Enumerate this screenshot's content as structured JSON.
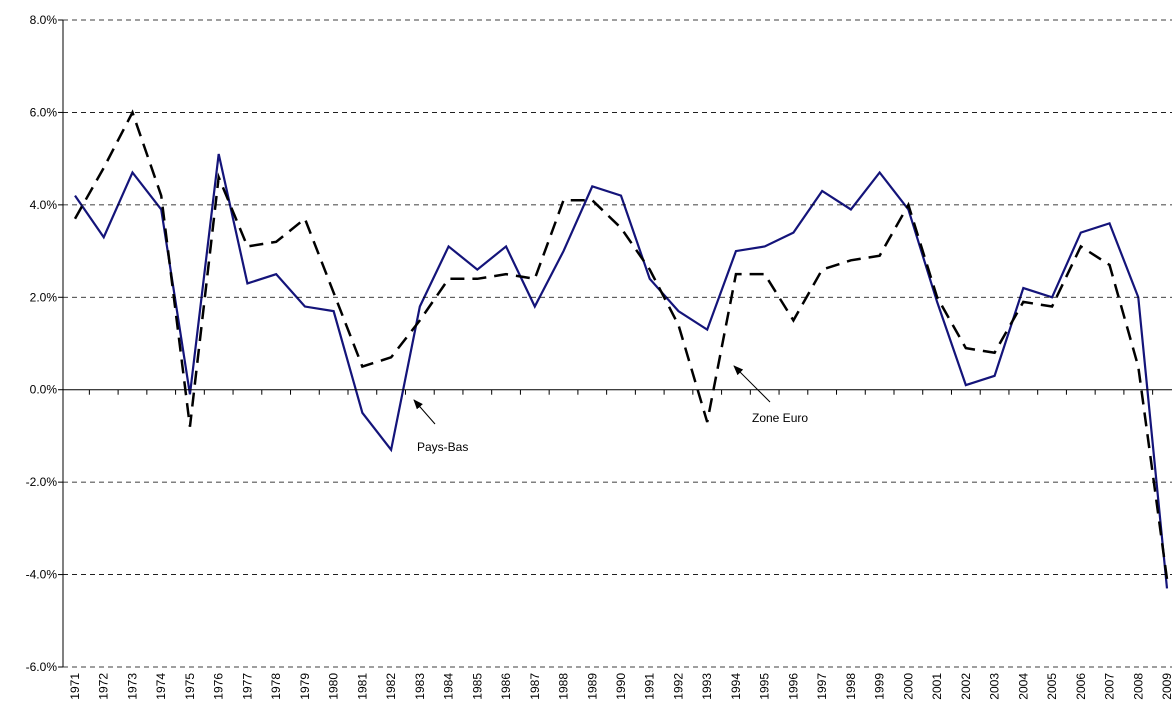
{
  "chart_data": {
    "type": "line",
    "categories": [
      "1971",
      "1972",
      "1973",
      "1974",
      "1975",
      "1976",
      "1977",
      "1978",
      "1979",
      "1980",
      "1981",
      "1982",
      "1983",
      "1984",
      "1985",
      "1986",
      "1987",
      "1988",
      "1989",
      "1990",
      "1991",
      "1992",
      "1993",
      "1994",
      "1995",
      "1996",
      "1997",
      "1998",
      "1999",
      "2000",
      "2001",
      "2002",
      "2003",
      "2004",
      "2005",
      "2006",
      "2007",
      "2008",
      "2009"
    ],
    "series": [
      {
        "name": "Pays-Bas",
        "color": "#14147a",
        "dash": false,
        "values": [
          4.2,
          3.3,
          4.7,
          3.9,
          -0.1,
          5.1,
          2.3,
          2.5,
          1.8,
          1.7,
          -0.5,
          -1.3,
          1.8,
          3.1,
          2.6,
          3.1,
          1.8,
          3.0,
          4.4,
          4.2,
          2.4,
          1.7,
          1.3,
          3.0,
          3.1,
          3.4,
          4.3,
          3.9,
          4.7,
          3.9,
          1.9,
          0.1,
          0.3,
          2.2,
          2.0,
          3.4,
          3.6,
          2.0,
          -4.3
        ]
      },
      {
        "name": "Zone Euro",
        "color": "#000000",
        "dash": true,
        "values": [
          3.7,
          4.8,
          6.0,
          4.2,
          -0.8,
          4.6,
          3.1,
          3.2,
          3.7,
          2.1,
          0.5,
          0.7,
          1.5,
          2.4,
          2.4,
          2.5,
          2.4,
          4.1,
          4.1,
          3.5,
          2.6,
          1.4,
          -0.7,
          2.5,
          2.5,
          1.5,
          2.6,
          2.8,
          2.9,
          4.0,
          2.0,
          0.9,
          0.8,
          1.9,
          1.8,
          3.1,
          2.7,
          0.5,
          -4.1
        ]
      }
    ],
    "ylim": [
      -6,
      8
    ],
    "yticks": [
      {
        "value": -6,
        "label": "-6.0%"
      },
      {
        "value": -4,
        "label": "-4.0%"
      },
      {
        "value": -2,
        "label": "-2.0%"
      },
      {
        "value": 0,
        "label": "0.0%"
      },
      {
        "value": 2,
        "label": "2.0%"
      },
      {
        "value": 4,
        "label": "4.0%"
      },
      {
        "value": 6,
        "label": "6.0%"
      },
      {
        "value": 8,
        "label": "8.0%"
      }
    ],
    "grid": true,
    "annotations": [
      "Pays-Bas",
      "Zone Euro"
    ]
  }
}
